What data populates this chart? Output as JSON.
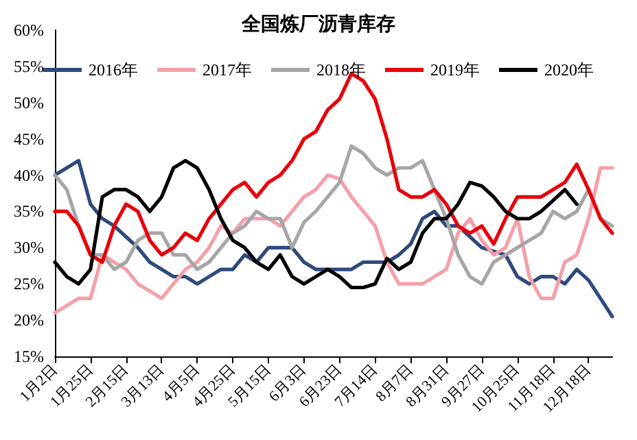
{
  "chart_data": {
    "type": "line",
    "title": "全国炼厂沥青库存",
    "categories": [
      "1月2日",
      null,
      null,
      "1月25日",
      null,
      null,
      "2月15日",
      null,
      null,
      "3月13日",
      null,
      null,
      "4月5日",
      null,
      null,
      "4月25日",
      null,
      null,
      "5月15日",
      null,
      null,
      "6月3日",
      null,
      null,
      "6月23日",
      null,
      null,
      "7月14日",
      null,
      null,
      "8月7日",
      null,
      null,
      "8月31日",
      null,
      null,
      "9月27日",
      null,
      null,
      "10月25日",
      null,
      null,
      "11月18日",
      null,
      null,
      "12月18日",
      null,
      null
    ],
    "series": [
      {
        "name": "2016年",
        "color": "#2e4a7d",
        "values": [
          40,
          41,
          42,
          36,
          34,
          33,
          31.5,
          30,
          28,
          27,
          26,
          26,
          25,
          26,
          27,
          27,
          29,
          28,
          30,
          30,
          30,
          28,
          27,
          27,
          27,
          27,
          28,
          28,
          28,
          29,
          30.5,
          34,
          35,
          33,
          33,
          31.5,
          30,
          29.5,
          29,
          26,
          25,
          26,
          26,
          25,
          27,
          25.5,
          23,
          20.5
        ]
      },
      {
        "name": "2017年",
        "color": "#f4a0a8",
        "values": [
          21,
          22,
          23,
          23,
          29,
          28,
          27,
          25,
          24,
          23,
          25,
          27,
          28,
          30,
          33,
          32,
          34,
          34,
          34,
          33,
          35,
          37,
          38,
          40,
          39.5,
          37,
          35,
          33,
          28,
          25,
          25,
          25,
          26,
          27,
          32,
          34,
          31,
          29,
          30,
          34,
          26,
          23,
          23,
          28,
          29,
          34,
          41,
          41
        ]
      },
      {
        "name": "2018年",
        "color": "#a6a6a6",
        "values": [
          40,
          38,
          33,
          29,
          29,
          27,
          28,
          31,
          32,
          32,
          29,
          29,
          27,
          28,
          30,
          32,
          33,
          35,
          34,
          34,
          30,
          33.5,
          35,
          37,
          39,
          44,
          43,
          41,
          40,
          41,
          41,
          42,
          38,
          34,
          29,
          26,
          25,
          28,
          29,
          30,
          31,
          32,
          35,
          34,
          35,
          38,
          34,
          33
        ]
      },
      {
        "name": "2019年",
        "color": "#e8000b",
        "values": [
          35,
          35,
          33,
          29,
          28,
          33,
          36,
          35,
          31,
          29,
          30,
          32,
          31,
          34,
          36,
          38,
          39,
          37,
          39,
          40,
          42,
          45,
          46,
          49,
          50.5,
          54,
          53,
          50.5,
          45,
          38,
          37,
          37,
          38,
          36,
          33,
          32,
          33,
          30.5,
          34,
          37,
          37,
          37,
          38,
          39,
          41.5,
          38,
          34,
          32
        ]
      },
      {
        "name": "2020年",
        "color": "#000000",
        "values": [
          28,
          26,
          25,
          27,
          37,
          38,
          38,
          37,
          35,
          37,
          41,
          42,
          41,
          38,
          34,
          31,
          30,
          28,
          27,
          29,
          26,
          25,
          26,
          27,
          26,
          24.5,
          24.5,
          25,
          28.5,
          27,
          28,
          32,
          34,
          34,
          36,
          39,
          38.5,
          37,
          35,
          34,
          34,
          35,
          36.5,
          38,
          36,
          null,
          null,
          null
        ]
      }
    ],
    "ylim": [
      15,
      60
    ],
    "yticks": [
      {
        "value": 15,
        "label": "15%"
      },
      {
        "value": 20,
        "label": "20%"
      },
      {
        "value": 25,
        "label": "25%"
      },
      {
        "value": 30,
        "label": "30%"
      },
      {
        "value": 35,
        "label": "35%"
      },
      {
        "value": 40,
        "label": "40%"
      },
      {
        "value": 45,
        "label": "45%"
      },
      {
        "value": 50,
        "label": "50%"
      },
      {
        "value": 55,
        "label": "55%"
      },
      {
        "value": 60,
        "label": "60%"
      }
    ],
    "grid": false,
    "legend": "top",
    "marker": "none",
    "line_style": "solid"
  }
}
